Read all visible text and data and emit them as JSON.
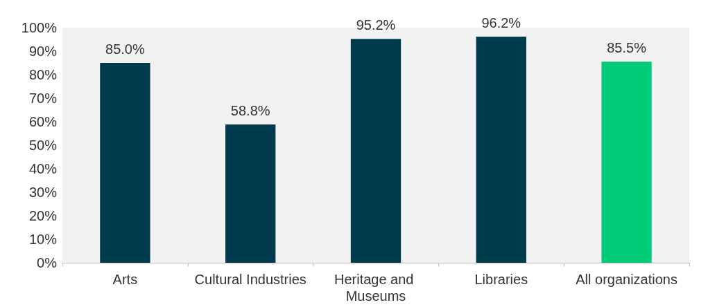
{
  "chart_data": {
    "type": "bar",
    "categories": [
      "Arts",
      "Cultural Industries",
      "Heritage and Museums",
      "Libraries",
      "All organizations"
    ],
    "values": [
      85.0,
      58.8,
      95.2,
      96.2,
      85.5
    ],
    "colors": [
      "#003a4d",
      "#003a4d",
      "#003a4d",
      "#003a4d",
      "#00cc78"
    ],
    "value_labels": [
      "85.0%",
      "58.8%",
      "95.2%",
      "96.2%",
      "85.5%"
    ],
    "ylim": [
      0,
      100
    ],
    "yticks": [
      {
        "value": 0,
        "label": "0%"
      },
      {
        "value": 10,
        "label": "10%"
      },
      {
        "value": 20,
        "label": "20%"
      },
      {
        "value": 30,
        "label": "30%"
      },
      {
        "value": 40,
        "label": "40%"
      },
      {
        "value": 50,
        "label": "50%"
      },
      {
        "value": 60,
        "label": "60%"
      },
      {
        "value": 70,
        "label": "70%"
      },
      {
        "value": 80,
        "label": "80%"
      },
      {
        "value": 90,
        "label": "90%"
      },
      {
        "value": 100,
        "label": "100%"
      }
    ],
    "grid": false
  }
}
